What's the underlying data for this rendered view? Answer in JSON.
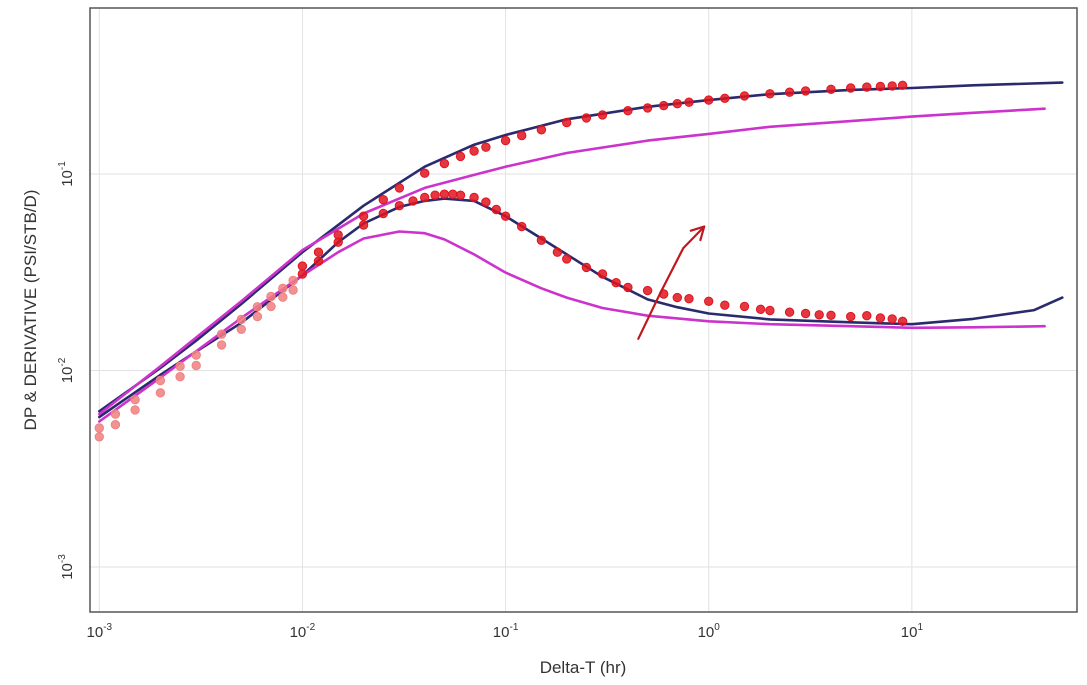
{
  "chart_data": {
    "type": "scatter",
    "xlabel": "Delta-T (hr)",
    "ylabel": "DP & DERIVATIVE (PSI/STB/D)",
    "x_scale": "log",
    "y_scale": "log",
    "xlim": [
      0.0009,
      65
    ],
    "ylim": [
      0.00059,
      0.7
    ],
    "grid": true,
    "x_ticks": [
      {
        "value": 0.001,
        "mantissa": "10",
        "exp": "-3"
      },
      {
        "value": 0.01,
        "mantissa": "10",
        "exp": "-2"
      },
      {
        "value": 0.1,
        "mantissa": "10",
        "exp": "-1"
      },
      {
        "value": 1,
        "mantissa": "10",
        "exp": "0"
      },
      {
        "value": 10,
        "mantissa": "10",
        "exp": "1"
      }
    ],
    "y_ticks": [
      {
        "value": 0.001,
        "mantissa": "10",
        "exp": "-3"
      },
      {
        "value": 0.01,
        "mantissa": "10",
        "exp": "-2"
      },
      {
        "value": 0.1,
        "mantissa": "10",
        "exp": "-1"
      }
    ],
    "colors": {
      "navy": "#2a2a6e",
      "red": "#e0141e",
      "magenta": "#cc33cc",
      "pink": "#f08080",
      "annotation": "#c0181e",
      "grid": "#e2e2e2",
      "frame": "#555555"
    },
    "series": [
      {
        "style": "line",
        "color_key": "navy",
        "x": [
          0.001,
          0.002,
          0.003,
          0.005,
          0.01,
          0.02,
          0.04,
          0.07,
          0.1,
          0.2,
          0.5,
          1,
          2,
          5,
          10,
          20,
          55
        ],
        "y": [
          0.0062,
          0.0103,
          0.0142,
          0.0218,
          0.04,
          0.069,
          0.109,
          0.141,
          0.158,
          0.19,
          0.22,
          0.238,
          0.255,
          0.268,
          0.274,
          0.283,
          0.292
        ]
      },
      {
        "style": "line",
        "color_key": "navy",
        "x": [
          0.001,
          0.002,
          0.003,
          0.005,
          0.01,
          0.015,
          0.02,
          0.03,
          0.04,
          0.05,
          0.07,
          0.1,
          0.15,
          0.2,
          0.3,
          0.5,
          0.7,
          1,
          2,
          5,
          10,
          20,
          40,
          55
        ],
        "y": [
          0.0058,
          0.0095,
          0.0125,
          0.0175,
          0.0305,
          0.045,
          0.056,
          0.068,
          0.073,
          0.075,
          0.073,
          0.061,
          0.047,
          0.039,
          0.03,
          0.023,
          0.021,
          0.0195,
          0.0182,
          0.0176,
          0.0172,
          0.0183,
          0.0203,
          0.0235
        ]
      },
      {
        "style": "line",
        "color_key": "magenta",
        "x": [
          0.001,
          0.002,
          0.005,
          0.01,
          0.02,
          0.04,
          0.07,
          0.1,
          0.2,
          0.5,
          1,
          2,
          5,
          10,
          20,
          45
        ],
        "y": [
          0.006,
          0.0105,
          0.0225,
          0.041,
          0.063,
          0.085,
          0.099,
          0.109,
          0.128,
          0.148,
          0.16,
          0.174,
          0.186,
          0.196,
          0.205,
          0.215
        ]
      },
      {
        "style": "line",
        "color_key": "magenta",
        "x": [
          0.001,
          0.002,
          0.005,
          0.01,
          0.015,
          0.02,
          0.03,
          0.04,
          0.05,
          0.07,
          0.1,
          0.15,
          0.2,
          0.3,
          0.5,
          1,
          2,
          5,
          10,
          20,
          45
        ],
        "y": [
          0.0055,
          0.0092,
          0.0185,
          0.0305,
          0.04,
          0.047,
          0.051,
          0.05,
          0.0465,
          0.039,
          0.0315,
          0.0262,
          0.0235,
          0.0208,
          0.019,
          0.0178,
          0.0172,
          0.0168,
          0.0165,
          0.0166,
          0.0168
        ]
      },
      {
        "style": "markers",
        "color_key": "red",
        "x": [
          0.01,
          0.012,
          0.015,
          0.02,
          0.025,
          0.03,
          0.04,
          0.05,
          0.06,
          0.07,
          0.08,
          0.1,
          0.12,
          0.15,
          0.2,
          0.25,
          0.3,
          0.4,
          0.5,
          0.6,
          0.7,
          0.8,
          1,
          1.2,
          1.5,
          2,
          2.5,
          3,
          4,
          5,
          6,
          7,
          8,
          9
        ],
        "y": [
          0.034,
          0.04,
          0.049,
          0.061,
          0.074,
          0.085,
          0.101,
          0.113,
          0.123,
          0.131,
          0.137,
          0.148,
          0.157,
          0.168,
          0.183,
          0.193,
          0.2,
          0.21,
          0.217,
          0.223,
          0.228,
          0.232,
          0.238,
          0.243,
          0.25,
          0.256,
          0.261,
          0.265,
          0.27,
          0.274,
          0.277,
          0.279,
          0.281,
          0.283
        ]
      },
      {
        "style": "markers",
        "color_key": "red",
        "x": [
          0.01,
          0.012,
          0.015,
          0.02,
          0.025,
          0.03,
          0.035,
          0.04,
          0.045,
          0.05,
          0.055,
          0.06,
          0.07,
          0.08,
          0.09,
          0.1,
          0.12,
          0.15,
          0.18,
          0.2,
          0.25,
          0.3,
          0.35,
          0.4,
          0.5,
          0.6,
          0.7,
          0.8,
          1,
          1.2,
          1.5,
          1.8,
          2,
          2.5,
          3,
          3.5,
          4,
          5,
          6,
          7,
          8,
          9
        ],
        "y": [
          0.031,
          0.036,
          0.045,
          0.055,
          0.063,
          0.069,
          0.073,
          0.076,
          0.078,
          0.079,
          0.079,
          0.078,
          0.076,
          0.072,
          0.066,
          0.061,
          0.054,
          0.046,
          0.04,
          0.037,
          0.0335,
          0.031,
          0.028,
          0.0265,
          0.0255,
          0.0245,
          0.0235,
          0.0232,
          0.0225,
          0.0215,
          0.0212,
          0.0205,
          0.0202,
          0.0198,
          0.0195,
          0.0192,
          0.0191,
          0.0188,
          0.019,
          0.0185,
          0.0183,
          0.0178
        ]
      },
      {
        "style": "markers",
        "color_key": "pink",
        "x": [
          0.001,
          0.0012,
          0.0015,
          0.002,
          0.0025,
          0.003,
          0.004,
          0.005,
          0.006,
          0.007,
          0.008,
          0.009
        ],
        "y": [
          0.0046,
          0.0053,
          0.0063,
          0.0077,
          0.0093,
          0.0106,
          0.0135,
          0.0162,
          0.0188,
          0.0212,
          0.0236,
          0.0257
        ]
      },
      {
        "style": "markers",
        "color_key": "pink",
        "x": [
          0.001,
          0.0012,
          0.0015,
          0.002,
          0.0025,
          0.003,
          0.004,
          0.005,
          0.006,
          0.007,
          0.008,
          0.009
        ],
        "y": [
          0.0051,
          0.006,
          0.0071,
          0.0089,
          0.0105,
          0.012,
          0.0153,
          0.0182,
          0.0211,
          0.0238,
          0.0262,
          0.0287
        ]
      }
    ],
    "annotation": {
      "type": "arrow",
      "color_key": "annotation",
      "x": [
        0.45,
        0.58,
        0.75,
        0.95
      ],
      "y": [
        0.0145,
        0.025,
        0.042,
        0.054
      ]
    }
  }
}
